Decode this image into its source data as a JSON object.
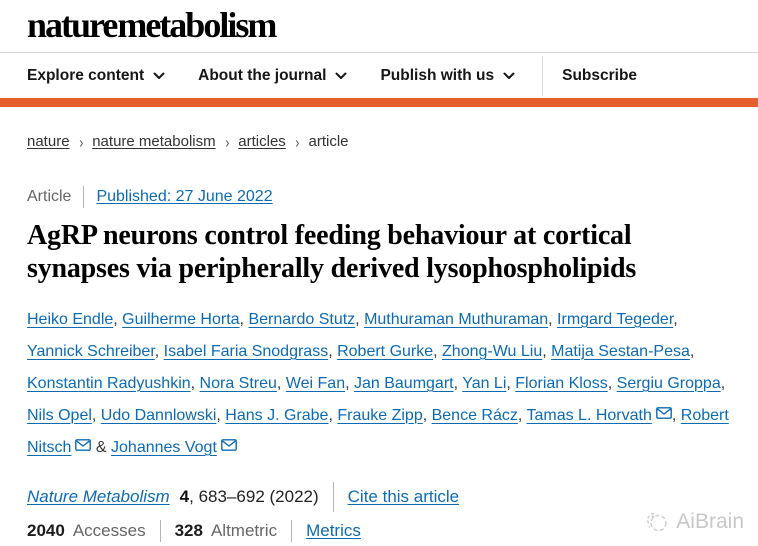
{
  "brand": {
    "logo_text": "nature metabolism",
    "accent_color": "#e45f2c",
    "link_color": "#0c6bb3"
  },
  "nav": {
    "items": [
      {
        "label": "Explore content",
        "dropdown": true
      },
      {
        "label": "About the journal",
        "dropdown": true
      },
      {
        "label": "Publish with us",
        "dropdown": true
      }
    ],
    "subscribe_label": "Subscribe"
  },
  "breadcrumb": [
    {
      "label": "nature",
      "link": true
    },
    {
      "label": "nature metabolism",
      "link": true
    },
    {
      "label": "articles",
      "link": true
    },
    {
      "label": "article",
      "link": false
    }
  ],
  "article": {
    "type_label": "Article",
    "published": "Published: 27 June 2022",
    "title": "AgRP neurons control feeding behaviour at cortical synapses via peripherally derived lysophospholipids"
  },
  "authors": [
    {
      "name": "Heiko Endle"
    },
    {
      "name": "Guilherme Horta"
    },
    {
      "name": "Bernardo Stutz"
    },
    {
      "name": "Muthuraman Muthuraman"
    },
    {
      "name": "Irmgard Tegeder"
    },
    {
      "name": "Yannick Schreiber"
    },
    {
      "name": "Isabel Faria Snodgrass"
    },
    {
      "name": "Robert Gurke"
    },
    {
      "name": "Zhong-Wu Liu"
    },
    {
      "name": "Matija Sestan-Pesa"
    },
    {
      "name": "Konstantin Radyushkin"
    },
    {
      "name": "Nora Streu"
    },
    {
      "name": "Wei Fan"
    },
    {
      "name": "Jan Baumgart"
    },
    {
      "name": "Yan Li"
    },
    {
      "name": "Florian Kloss"
    },
    {
      "name": "Sergiu Groppa"
    },
    {
      "name": "Nils Opel"
    },
    {
      "name": "Udo Dannlowski"
    },
    {
      "name": "Hans J. Grabe"
    },
    {
      "name": "Frauke Zipp"
    },
    {
      "name": "Bence Rácz"
    },
    {
      "name": "Tamas L. Horvath",
      "email": true
    },
    {
      "name": "Robert Nitsch",
      "email": true
    },
    {
      "name": "Johannes Vogt",
      "email": true
    }
  ],
  "citation": {
    "journal": "Nature Metabolism",
    "volume": "4",
    "pages_year": ", 683–692 (2022)",
    "cite_link": "Cite this article"
  },
  "metrics": {
    "accesses_value": "2040",
    "accesses_label": "Accesses",
    "altmetric_value": "328",
    "altmetric_label": "Altmetric",
    "metrics_link": "Metrics"
  },
  "watermark": {
    "label": "AiBrain"
  }
}
